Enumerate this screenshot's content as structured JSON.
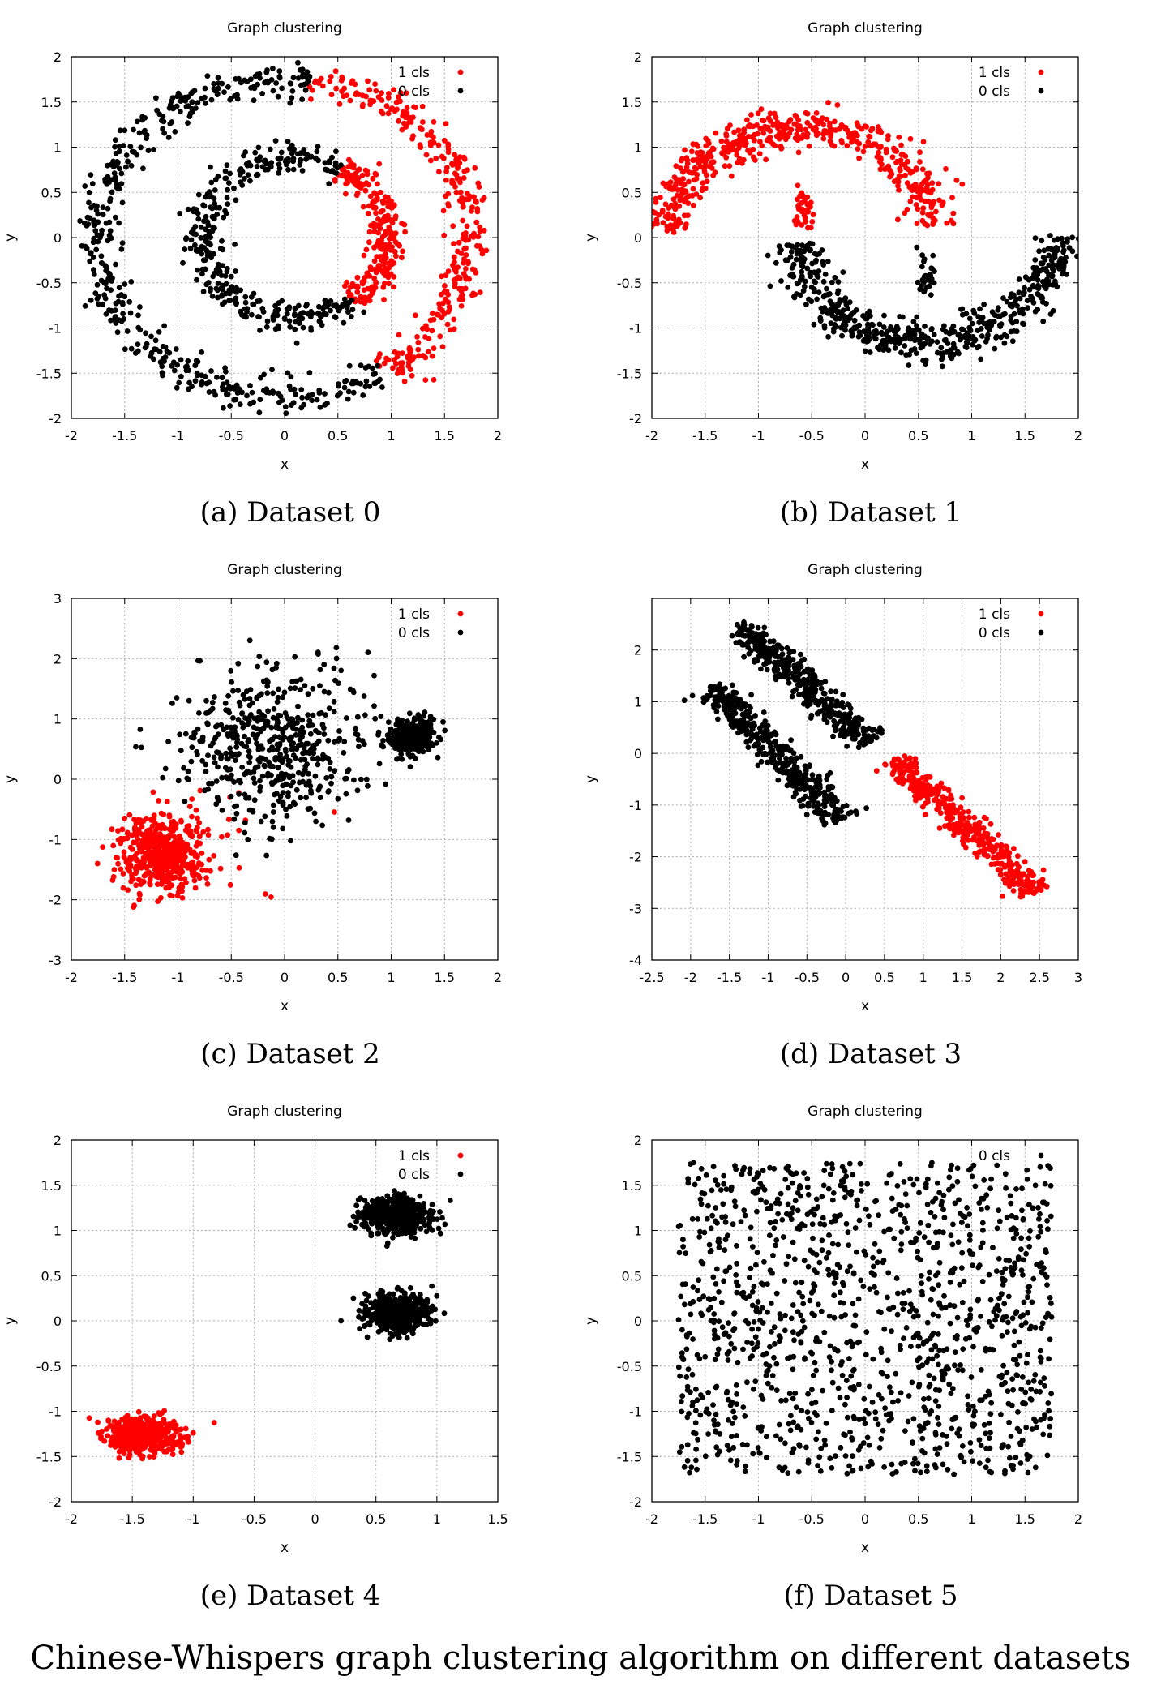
{
  "figure_caption": "Chinese-Whispers graph clustering algorithm on different datasets",
  "chart_data": [
    {
      "type": "scatter",
      "panel": "a",
      "caption": "(a) Dataset 0",
      "title": "Graph clustering",
      "xlabel": "x",
      "ylabel": "y",
      "xlim": [
        -2,
        2
      ],
      "ylim": [
        -2,
        2
      ],
      "xticks": [
        "-2",
        "-1.5",
        "-1",
        "-0.5",
        "0",
        "0.5",
        "1",
        "1.5",
        "2"
      ],
      "yticks": [
        "-2",
        "-1.5",
        "-1",
        "-0.5",
        "0",
        "0.5",
        "1",
        "1.5",
        "2"
      ],
      "grid": true,
      "legend_position": "top-right",
      "series": [
        {
          "name": "1 cls",
          "color": "#ff0000",
          "seed": 11,
          "clusters": [
            {
              "shape": "arc",
              "cx": 0,
              "cy": 0,
              "r": 1.75,
              "a0": -58,
              "a1": 82,
              "noise": 0.1,
              "n": 320
            },
            {
              "shape": "arc",
              "cx": 0.1,
              "cy": 0,
              "r": 0.88,
              "a0": -52,
              "a1": 60,
              "noise": 0.09,
              "n": 240
            }
          ]
        },
        {
          "name": "0 cls",
          "color": "#000000",
          "seed": 12,
          "clusters": [
            {
              "shape": "arc",
              "cx": 0,
              "cy": 0,
              "r": 1.75,
              "a0": 82,
              "a1": 302,
              "noise": 0.1,
              "n": 460
            },
            {
              "shape": "arc",
              "cx": 0.1,
              "cy": 0,
              "r": 0.88,
              "a0": 60,
              "a1": 308,
              "noise": 0.09,
              "n": 360
            }
          ]
        }
      ]
    },
    {
      "type": "scatter",
      "panel": "b",
      "caption": "(b) Dataset 1",
      "title": "Graph clustering",
      "xlabel": "x",
      "ylabel": "y",
      "xlim": [
        -2,
        2
      ],
      "ylim": [
        -2,
        2
      ],
      "xticks": [
        "-2",
        "-1.5",
        "-1",
        "-0.5",
        "0",
        "0.5",
        "1",
        "1.5",
        "2"
      ],
      "yticks": [
        "-2",
        "-1.5",
        "-1",
        "-0.5",
        "0",
        "0.5",
        "1",
        "1.5",
        "2"
      ],
      "grid": true,
      "legend_position": "top-right",
      "series": [
        {
          "name": "1 cls",
          "color": "#ff0000",
          "seed": 21,
          "clusters": [
            {
              "shape": "arc",
              "cx": -0.6,
              "cy": -0.05,
              "r": 1.28,
              "a0": 8,
              "a1": 175,
              "noise": 0.11,
              "n": 520
            },
            {
              "shape": "gauss",
              "cx": -0.58,
              "cy": 0.3,
              "sx": 0.05,
              "sy": 0.15,
              "n": 40
            }
          ]
        },
        {
          "name": "0 cls",
          "color": "#000000",
          "seed": 22,
          "clusters": [
            {
              "shape": "arc",
              "cx": 0.58,
              "cy": 0.1,
              "r": 1.25,
              "a0": 188,
              "a1": 357,
              "noise": 0.11,
              "n": 560
            },
            {
              "shape": "gauss",
              "cx": 0.58,
              "cy": -0.45,
              "sx": 0.04,
              "sy": 0.12,
              "n": 30
            }
          ]
        }
      ]
    },
    {
      "type": "scatter",
      "panel": "c",
      "caption": "(c) Dataset 2",
      "title": "Graph clustering",
      "xlabel": "x",
      "ylabel": "y",
      "xlim": [
        -2,
        2
      ],
      "ylim": [
        -3,
        3
      ],
      "xticks": [
        "-2",
        "-1.5",
        "-1",
        "-0.5",
        "0",
        "0.5",
        "1",
        "1.5",
        "2"
      ],
      "yticks": [
        "-3",
        "-2",
        "-1",
        "0",
        "1",
        "2",
        "3"
      ],
      "grid": true,
      "legend_position": "top-right",
      "series": [
        {
          "name": "1 cls",
          "color": "#ff0000",
          "seed": 31,
          "clusters": [
            {
              "shape": "gauss",
              "cx": -1.15,
              "cy": -1.25,
              "sx": 0.2,
              "sy": 0.3,
              "n": 520
            },
            {
              "shape": "gauss",
              "cx": -0.65,
              "cy": -0.7,
              "sx": 0.35,
              "sy": 0.5,
              "n": 30
            }
          ]
        },
        {
          "name": "0 cls",
          "color": "#000000",
          "seed": 32,
          "clusters": [
            {
              "shape": "gauss",
              "cx": -0.15,
              "cy": 0.55,
              "sx": 0.45,
              "sy": 0.65,
              "n": 520
            },
            {
              "shape": "gauss",
              "cx": 1.2,
              "cy": 0.7,
              "sx": 0.1,
              "sy": 0.14,
              "n": 330
            }
          ]
        }
      ]
    },
    {
      "type": "scatter",
      "panel": "d",
      "caption": "(d) Dataset 3",
      "title": "Graph clustering",
      "xlabel": "x",
      "ylabel": "y",
      "xlim": [
        -2.5,
        3
      ],
      "ylim": [
        -4,
        3
      ],
      "xticks": [
        "-2.5",
        "-2",
        "-1.5",
        "-1",
        "-0.5",
        "0",
        "0.5",
        "1",
        "1.5",
        "2",
        "2.5",
        "3"
      ],
      "yticks": [
        "-4",
        "-3",
        "-2",
        "-1",
        "0",
        "1",
        "2"
      ],
      "grid": true,
      "legend_position": "top-right",
      "series": [
        {
          "name": "1 cls",
          "color": "#ff0000",
          "seed": 41,
          "clusters": [
            {
              "shape": "line",
              "x0": 0.6,
              "y0": -0.1,
              "x1": 2.45,
              "y1": -2.7,
              "noise": 0.12,
              "n": 420
            }
          ]
        },
        {
          "name": "0 cls",
          "color": "#000000",
          "seed": 42,
          "clusters": [
            {
              "shape": "line",
              "x0": -1.4,
              "y0": 2.5,
              "x1": 0.3,
              "y1": 0.2,
              "noise": 0.13,
              "n": 440
            },
            {
              "shape": "line",
              "x0": -1.75,
              "y0": 1.3,
              "x1": -0.05,
              "y1": -1.3,
              "noise": 0.13,
              "n": 440
            }
          ]
        }
      ]
    },
    {
      "type": "scatter",
      "panel": "e",
      "caption": "(e) Dataset 4",
      "title": "Graph clustering",
      "xlabel": "x",
      "ylabel": "y",
      "xlim": [
        -2,
        1.5
      ],
      "ylim": [
        -2,
        2
      ],
      "xticks": [
        "-2",
        "-1.5",
        "-1",
        "-0.5",
        "0",
        "0.5",
        "1",
        "1.5"
      ],
      "yticks": [
        "-2",
        "-1.5",
        "-1",
        "-0.5",
        "0",
        "0.5",
        "1",
        "1.5",
        "2"
      ],
      "grid": true,
      "legend_position": "top-right",
      "series": [
        {
          "name": "1 cls",
          "color": "#ff0000",
          "seed": 51,
          "clusters": [
            {
              "shape": "gauss",
              "cx": -1.4,
              "cy": -1.27,
              "sx": 0.15,
              "sy": 0.1,
              "n": 520
            }
          ]
        },
        {
          "name": "0 cls",
          "color": "#000000",
          "seed": 52,
          "clusters": [
            {
              "shape": "gauss",
              "cx": 0.67,
              "cy": 1.17,
              "sx": 0.14,
              "sy": 0.1,
              "n": 520
            },
            {
              "shape": "gauss",
              "cx": 0.67,
              "cy": 0.08,
              "sx": 0.13,
              "sy": 0.1,
              "n": 520
            }
          ]
        }
      ]
    },
    {
      "type": "scatter",
      "panel": "f",
      "caption": "(f) Dataset 5",
      "title": "Graph clustering",
      "xlabel": "x",
      "ylabel": "y",
      "xlim": [
        -2,
        2
      ],
      "ylim": [
        -2,
        2
      ],
      "xticks": [
        "-2",
        "-1.5",
        "-1",
        "-0.5",
        "0",
        "0.5",
        "1",
        "1.5",
        "2"
      ],
      "yticks": [
        "-2",
        "-1.5",
        "-1",
        "-0.5",
        "0",
        "0.5",
        "1",
        "1.5",
        "2"
      ],
      "grid": true,
      "legend_position": "top-right",
      "series": [
        {
          "name": "0 cls",
          "color": "#000000",
          "seed": 61,
          "clusters": [
            {
              "shape": "uniform",
              "x0": -1.75,
              "x1": 1.75,
              "y0": -1.7,
              "y1": 1.75,
              "n": 1250
            }
          ]
        }
      ]
    }
  ]
}
